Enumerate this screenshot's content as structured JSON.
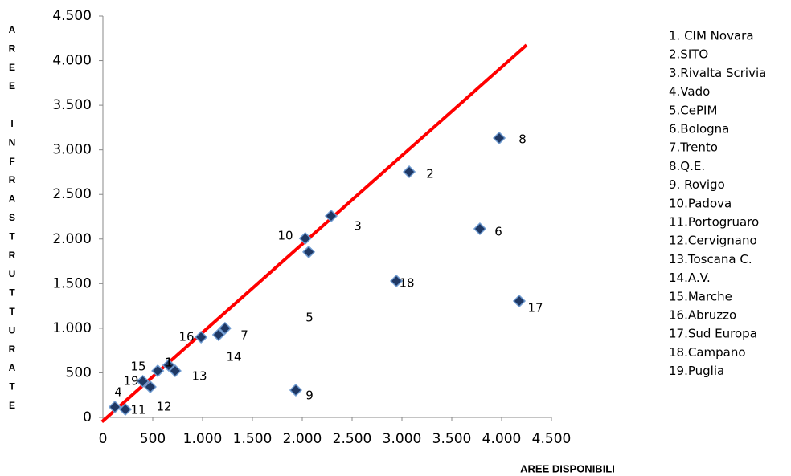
{
  "chart_data": {
    "type": "scatter",
    "x_label": "AREE DISPONIBILI",
    "y_label": "AREE INFRASTRUTTURATE",
    "point_labels": [
      "1",
      "2",
      "3",
      "4",
      "5",
      "6",
      "7",
      "8",
      "9",
      "10",
      "11",
      "12",
      "13",
      "14",
      "15",
      "16",
      "17",
      "18",
      "19"
    ],
    "x": [
      660,
      3073,
      2290,
      120,
      2065,
      3782,
      1225,
      3976,
      1935,
      2030,
      225,
      475,
      725,
      1160,
      550,
      985,
      4177,
      2944,
      400
    ],
    "values": [
      585,
      2754,
      2259,
      117,
      1855,
      2115,
      1000,
      3132,
      306,
      2007,
      90,
      342,
      522,
      927,
      522,
      900,
      1305,
      1530,
      405
    ],
    "color": "#1f3864",
    "trendline": {
      "x": [
        -10,
        4250
      ],
      "y": [
        -50,
        4175
      ],
      "color": "#ff0000"
    },
    "xlim": [
      0,
      4500
    ],
    "ylim": [
      0,
      4500
    ],
    "xticks": [
      0,
      500,
      {
        "value": 1000,
        "label": "1.000"
      },
      {
        "value": 1500,
        "label": "1.500"
      },
      {
        "value": 2000,
        "label": "2.000"
      },
      {
        "value": 2500,
        "label": "2.500"
      },
      {
        "value": 3000,
        "label": "3.000"
      },
      {
        "value": 3500,
        "label": "3.500"
      },
      {
        "value": 4000,
        "label": "4.000"
      },
      {
        "value": 4500,
        "label": "4.500"
      }
    ],
    "yticks": [
      0,
      500,
      {
        "value": 1000,
        "label": "1.000"
      },
      {
        "value": 1500,
        "label": "1.500"
      },
      {
        "value": 2000,
        "label": "2.000"
      },
      {
        "value": 2500,
        "label": "2.500"
      },
      {
        "value": 3000,
        "label": "3.000"
      },
      {
        "value": 3500,
        "label": "3.500"
      },
      {
        "value": 4000,
        "label": "4.000"
      },
      {
        "value": 4500,
        "label": "4.500"
      }
    ],
    "grid": false,
    "legend": [
      "1. CIM Novara",
      "2.SITO",
      "3.Rivalta Scrivia",
      "4.Vado",
      "5.CePIM",
      "6.Bologna",
      "7.Trento",
      "8.Q.E.",
      "9. Rovigo",
      "10.Padova",
      "11.Portogruaro",
      "12.Cervignano",
      "13.Toscana C.",
      "14.A.V.",
      "15.Marche",
      "16.Abruzzo",
      "17.Sud Europa",
      "18.Campano",
      "19.Puglia"
    ]
  }
}
